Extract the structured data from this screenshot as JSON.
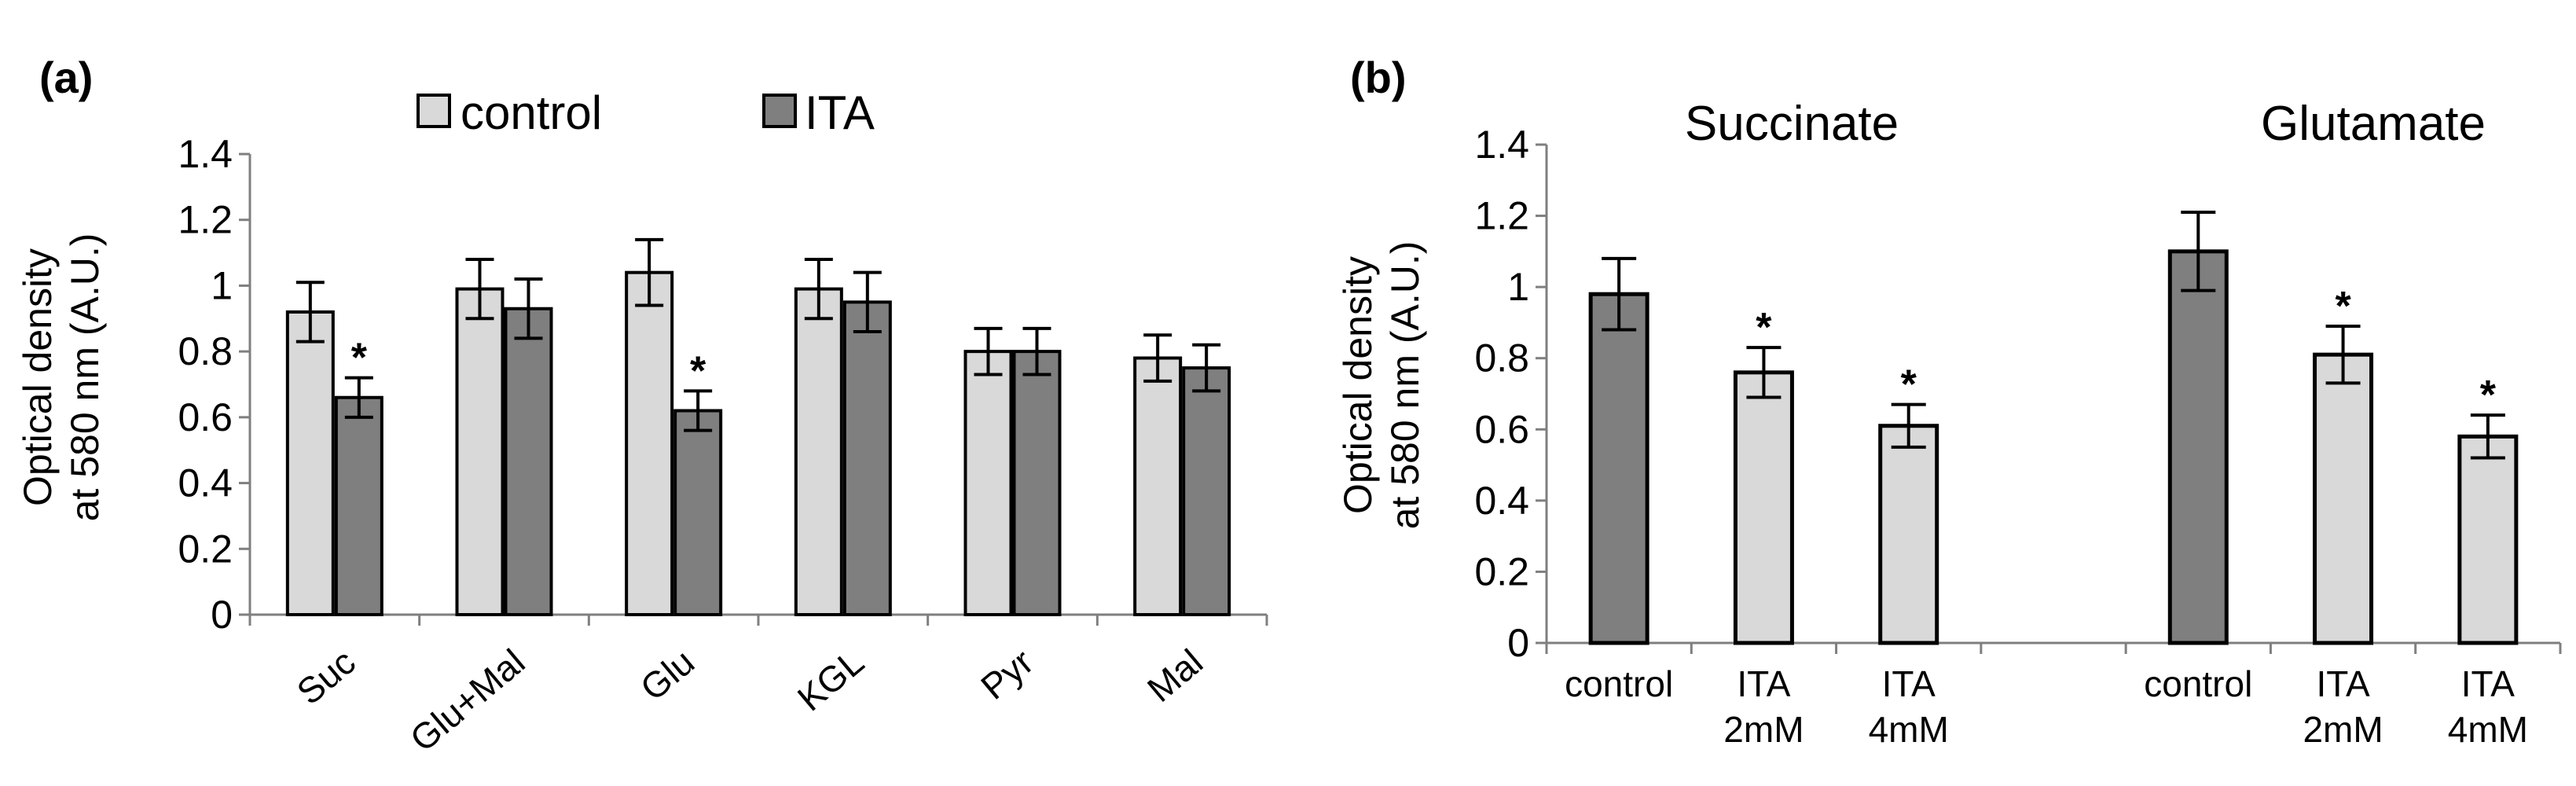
{
  "colors": {
    "control": "#d9d9d9",
    "ita": "#7f7f7f",
    "stroke": "#000000",
    "axis": "#7f7f7f"
  },
  "chart_data": [
    {
      "panel_label": "(a)",
      "type": "bar",
      "ylabel_line1": "Optical density",
      "ylabel_line2": "at 580 nm (A.U.)",
      "ylim": [
        0,
        1.4
      ],
      "yticks": [
        "0",
        "0.2",
        "0.4",
        "0.6",
        "0.8",
        "1",
        "1.2",
        "1.4"
      ],
      "ytick_values": [
        0,
        0.2,
        0.4,
        0.6,
        0.8,
        1.0,
        1.2,
        1.4
      ],
      "categories": [
        "Suc",
        "Glu+Mal",
        "Glu",
        "KGL",
        "Pyr",
        "Mal"
      ],
      "legend": [
        "control",
        "ITA"
      ],
      "series": [
        {
          "name": "control",
          "values": [
            0.92,
            0.99,
            1.04,
            0.99,
            0.8,
            0.78
          ],
          "errors": [
            0.09,
            0.09,
            0.1,
            0.09,
            0.07,
            0.07
          ],
          "stars": [
            false,
            false,
            false,
            false,
            false,
            false
          ]
        },
        {
          "name": "ITA",
          "values": [
            0.66,
            0.93,
            0.62,
            0.95,
            0.8,
            0.75
          ],
          "errors": [
            0.06,
            0.09,
            0.06,
            0.09,
            0.07,
            0.07
          ],
          "stars": [
            true,
            false,
            true,
            false,
            false,
            false
          ]
        }
      ],
      "star_symbol": "*"
    },
    {
      "panel_label": "(b)",
      "type": "bar",
      "ylabel_line1": "Optical density",
      "ylabel_line2": "at 580 nm (A.U.)",
      "ylim": [
        0,
        1.4
      ],
      "yticks": [
        "0",
        "0.2",
        "0.4",
        "0.6",
        "0.8",
        "1",
        "1.2",
        "1.4"
      ],
      "ytick_values": [
        0,
        0.2,
        0.4,
        0.6,
        0.8,
        1.0,
        1.2,
        1.4
      ],
      "groups": [
        {
          "title": "Succinate",
          "bars": [
            {
              "label": [
                "control"
              ],
              "value": 0.98,
              "error": 0.1,
              "star": false,
              "kind": "control"
            },
            {
              "label": [
                "ITA",
                "2mM"
              ],
              "value": 0.76,
              "error": 0.07,
              "star": true,
              "kind": "ita"
            },
            {
              "label": [
                "ITA",
                "4mM"
              ],
              "value": 0.61,
              "error": 0.06,
              "star": true,
              "kind": "ita"
            }
          ]
        },
        {
          "title": "Glutamate",
          "bars": [
            {
              "label": [
                "control"
              ],
              "value": 1.1,
              "error": 0.11,
              "star": false,
              "kind": "control"
            },
            {
              "label": [
                "ITA",
                "2mM"
              ],
              "value": 0.81,
              "error": 0.08,
              "star": true,
              "kind": "ita"
            },
            {
              "label": [
                "ITA",
                "4mM"
              ],
              "value": 0.58,
              "error": 0.06,
              "star": true,
              "kind": "ita"
            }
          ]
        }
      ],
      "star_symbol": "*"
    }
  ]
}
